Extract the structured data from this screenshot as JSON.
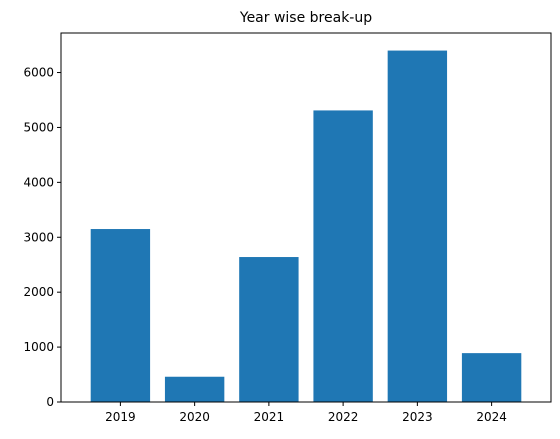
{
  "chart_data": {
    "type": "bar",
    "title": "Year wise break-up",
    "xlabel": "",
    "ylabel": "",
    "categories": [
      "2019",
      "2020",
      "2021",
      "2022",
      "2023",
      "2024"
    ],
    "values": [
      3150,
      460,
      2640,
      5310,
      6400,
      890
    ],
    "ylim": [
      0,
      6720
    ],
    "yticks": [
      0,
      1000,
      2000,
      3000,
      4000,
      5000,
      6000
    ],
    "grid": false,
    "legend": "none",
    "bar_color": "#1f77b4"
  }
}
